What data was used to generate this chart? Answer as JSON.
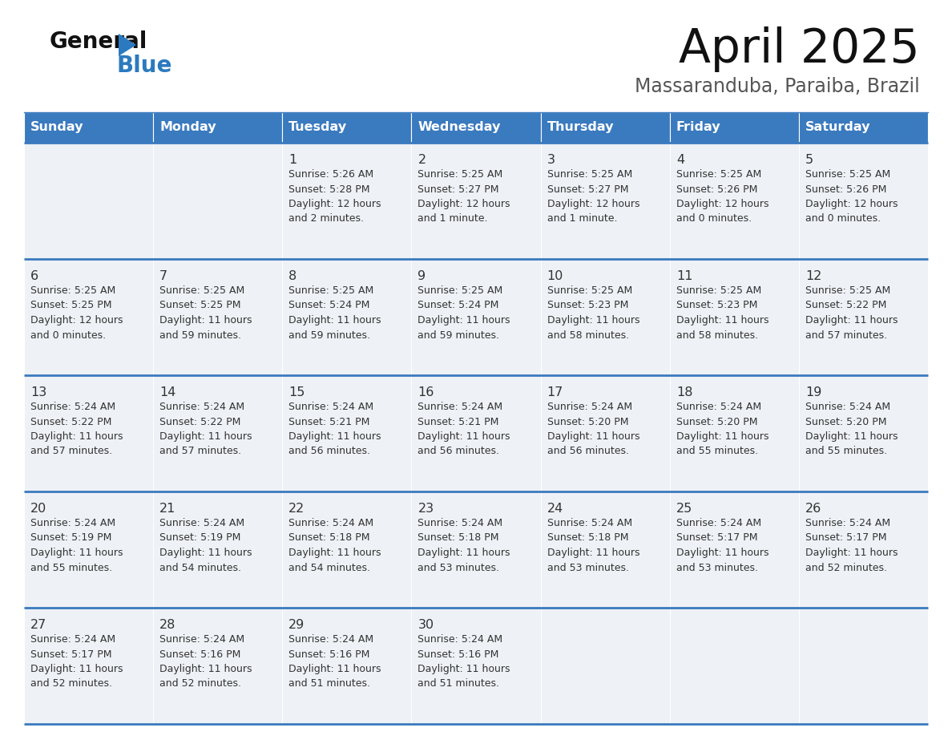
{
  "title": "April 2025",
  "subtitle": "Massaranduba, Paraiba, Brazil",
  "header_bg": "#3a7abf",
  "header_text_color": "#ffffff",
  "cell_bg": "#eef1f5",
  "cell_bg_empty": "#eef1f5",
  "row_line_color": "#3a7abf",
  "text_color": "#333333",
  "days_of_week": [
    "Sunday",
    "Monday",
    "Tuesday",
    "Wednesday",
    "Thursday",
    "Friday",
    "Saturday"
  ],
  "weeks": [
    [
      {
        "day": "",
        "sunrise": "",
        "sunset": "",
        "daylight1": "",
        "daylight2": ""
      },
      {
        "day": "",
        "sunrise": "",
        "sunset": "",
        "daylight1": "",
        "daylight2": ""
      },
      {
        "day": "1",
        "sunrise": "Sunrise: 5:26 AM",
        "sunset": "Sunset: 5:28 PM",
        "daylight1": "Daylight: 12 hours",
        "daylight2": "and 2 minutes."
      },
      {
        "day": "2",
        "sunrise": "Sunrise: 5:25 AM",
        "sunset": "Sunset: 5:27 PM",
        "daylight1": "Daylight: 12 hours",
        "daylight2": "and 1 minute."
      },
      {
        "day": "3",
        "sunrise": "Sunrise: 5:25 AM",
        "sunset": "Sunset: 5:27 PM",
        "daylight1": "Daylight: 12 hours",
        "daylight2": "and 1 minute."
      },
      {
        "day": "4",
        "sunrise": "Sunrise: 5:25 AM",
        "sunset": "Sunset: 5:26 PM",
        "daylight1": "Daylight: 12 hours",
        "daylight2": "and 0 minutes."
      },
      {
        "day": "5",
        "sunrise": "Sunrise: 5:25 AM",
        "sunset": "Sunset: 5:26 PM",
        "daylight1": "Daylight: 12 hours",
        "daylight2": "and 0 minutes."
      }
    ],
    [
      {
        "day": "6",
        "sunrise": "Sunrise: 5:25 AM",
        "sunset": "Sunset: 5:25 PM",
        "daylight1": "Daylight: 12 hours",
        "daylight2": "and 0 minutes."
      },
      {
        "day": "7",
        "sunrise": "Sunrise: 5:25 AM",
        "sunset": "Sunset: 5:25 PM",
        "daylight1": "Daylight: 11 hours",
        "daylight2": "and 59 minutes."
      },
      {
        "day": "8",
        "sunrise": "Sunrise: 5:25 AM",
        "sunset": "Sunset: 5:24 PM",
        "daylight1": "Daylight: 11 hours",
        "daylight2": "and 59 minutes."
      },
      {
        "day": "9",
        "sunrise": "Sunrise: 5:25 AM",
        "sunset": "Sunset: 5:24 PM",
        "daylight1": "Daylight: 11 hours",
        "daylight2": "and 59 minutes."
      },
      {
        "day": "10",
        "sunrise": "Sunrise: 5:25 AM",
        "sunset": "Sunset: 5:23 PM",
        "daylight1": "Daylight: 11 hours",
        "daylight2": "and 58 minutes."
      },
      {
        "day": "11",
        "sunrise": "Sunrise: 5:25 AM",
        "sunset": "Sunset: 5:23 PM",
        "daylight1": "Daylight: 11 hours",
        "daylight2": "and 58 minutes."
      },
      {
        "day": "12",
        "sunrise": "Sunrise: 5:25 AM",
        "sunset": "Sunset: 5:22 PM",
        "daylight1": "Daylight: 11 hours",
        "daylight2": "and 57 minutes."
      }
    ],
    [
      {
        "day": "13",
        "sunrise": "Sunrise: 5:24 AM",
        "sunset": "Sunset: 5:22 PM",
        "daylight1": "Daylight: 11 hours",
        "daylight2": "and 57 minutes."
      },
      {
        "day": "14",
        "sunrise": "Sunrise: 5:24 AM",
        "sunset": "Sunset: 5:22 PM",
        "daylight1": "Daylight: 11 hours",
        "daylight2": "and 57 minutes."
      },
      {
        "day": "15",
        "sunrise": "Sunrise: 5:24 AM",
        "sunset": "Sunset: 5:21 PM",
        "daylight1": "Daylight: 11 hours",
        "daylight2": "and 56 minutes."
      },
      {
        "day": "16",
        "sunrise": "Sunrise: 5:24 AM",
        "sunset": "Sunset: 5:21 PM",
        "daylight1": "Daylight: 11 hours",
        "daylight2": "and 56 minutes."
      },
      {
        "day": "17",
        "sunrise": "Sunrise: 5:24 AM",
        "sunset": "Sunset: 5:20 PM",
        "daylight1": "Daylight: 11 hours",
        "daylight2": "and 56 minutes."
      },
      {
        "day": "18",
        "sunrise": "Sunrise: 5:24 AM",
        "sunset": "Sunset: 5:20 PM",
        "daylight1": "Daylight: 11 hours",
        "daylight2": "and 55 minutes."
      },
      {
        "day": "19",
        "sunrise": "Sunrise: 5:24 AM",
        "sunset": "Sunset: 5:20 PM",
        "daylight1": "Daylight: 11 hours",
        "daylight2": "and 55 minutes."
      }
    ],
    [
      {
        "day": "20",
        "sunrise": "Sunrise: 5:24 AM",
        "sunset": "Sunset: 5:19 PM",
        "daylight1": "Daylight: 11 hours",
        "daylight2": "and 55 minutes."
      },
      {
        "day": "21",
        "sunrise": "Sunrise: 5:24 AM",
        "sunset": "Sunset: 5:19 PM",
        "daylight1": "Daylight: 11 hours",
        "daylight2": "and 54 minutes."
      },
      {
        "day": "22",
        "sunrise": "Sunrise: 5:24 AM",
        "sunset": "Sunset: 5:18 PM",
        "daylight1": "Daylight: 11 hours",
        "daylight2": "and 54 minutes."
      },
      {
        "day": "23",
        "sunrise": "Sunrise: 5:24 AM",
        "sunset": "Sunset: 5:18 PM",
        "daylight1": "Daylight: 11 hours",
        "daylight2": "and 53 minutes."
      },
      {
        "day": "24",
        "sunrise": "Sunrise: 5:24 AM",
        "sunset": "Sunset: 5:18 PM",
        "daylight1": "Daylight: 11 hours",
        "daylight2": "and 53 minutes."
      },
      {
        "day": "25",
        "sunrise": "Sunrise: 5:24 AM",
        "sunset": "Sunset: 5:17 PM",
        "daylight1": "Daylight: 11 hours",
        "daylight2": "and 53 minutes."
      },
      {
        "day": "26",
        "sunrise": "Sunrise: 5:24 AM",
        "sunset": "Sunset: 5:17 PM",
        "daylight1": "Daylight: 11 hours",
        "daylight2": "and 52 minutes."
      }
    ],
    [
      {
        "day": "27",
        "sunrise": "Sunrise: 5:24 AM",
        "sunset": "Sunset: 5:17 PM",
        "daylight1": "Daylight: 11 hours",
        "daylight2": "and 52 minutes."
      },
      {
        "day": "28",
        "sunrise": "Sunrise: 5:24 AM",
        "sunset": "Sunset: 5:16 PM",
        "daylight1": "Daylight: 11 hours",
        "daylight2": "and 52 minutes."
      },
      {
        "day": "29",
        "sunrise": "Sunrise: 5:24 AM",
        "sunset": "Sunset: 5:16 PM",
        "daylight1": "Daylight: 11 hours",
        "daylight2": "and 51 minutes."
      },
      {
        "day": "30",
        "sunrise": "Sunrise: 5:24 AM",
        "sunset": "Sunset: 5:16 PM",
        "daylight1": "Daylight: 11 hours",
        "daylight2": "and 51 minutes."
      },
      {
        "day": "",
        "sunrise": "",
        "sunset": "",
        "daylight1": "",
        "daylight2": ""
      },
      {
        "day": "",
        "sunrise": "",
        "sunset": "",
        "daylight1": "",
        "daylight2": ""
      },
      {
        "day": "",
        "sunrise": "",
        "sunset": "",
        "daylight1": "",
        "daylight2": ""
      }
    ]
  ]
}
